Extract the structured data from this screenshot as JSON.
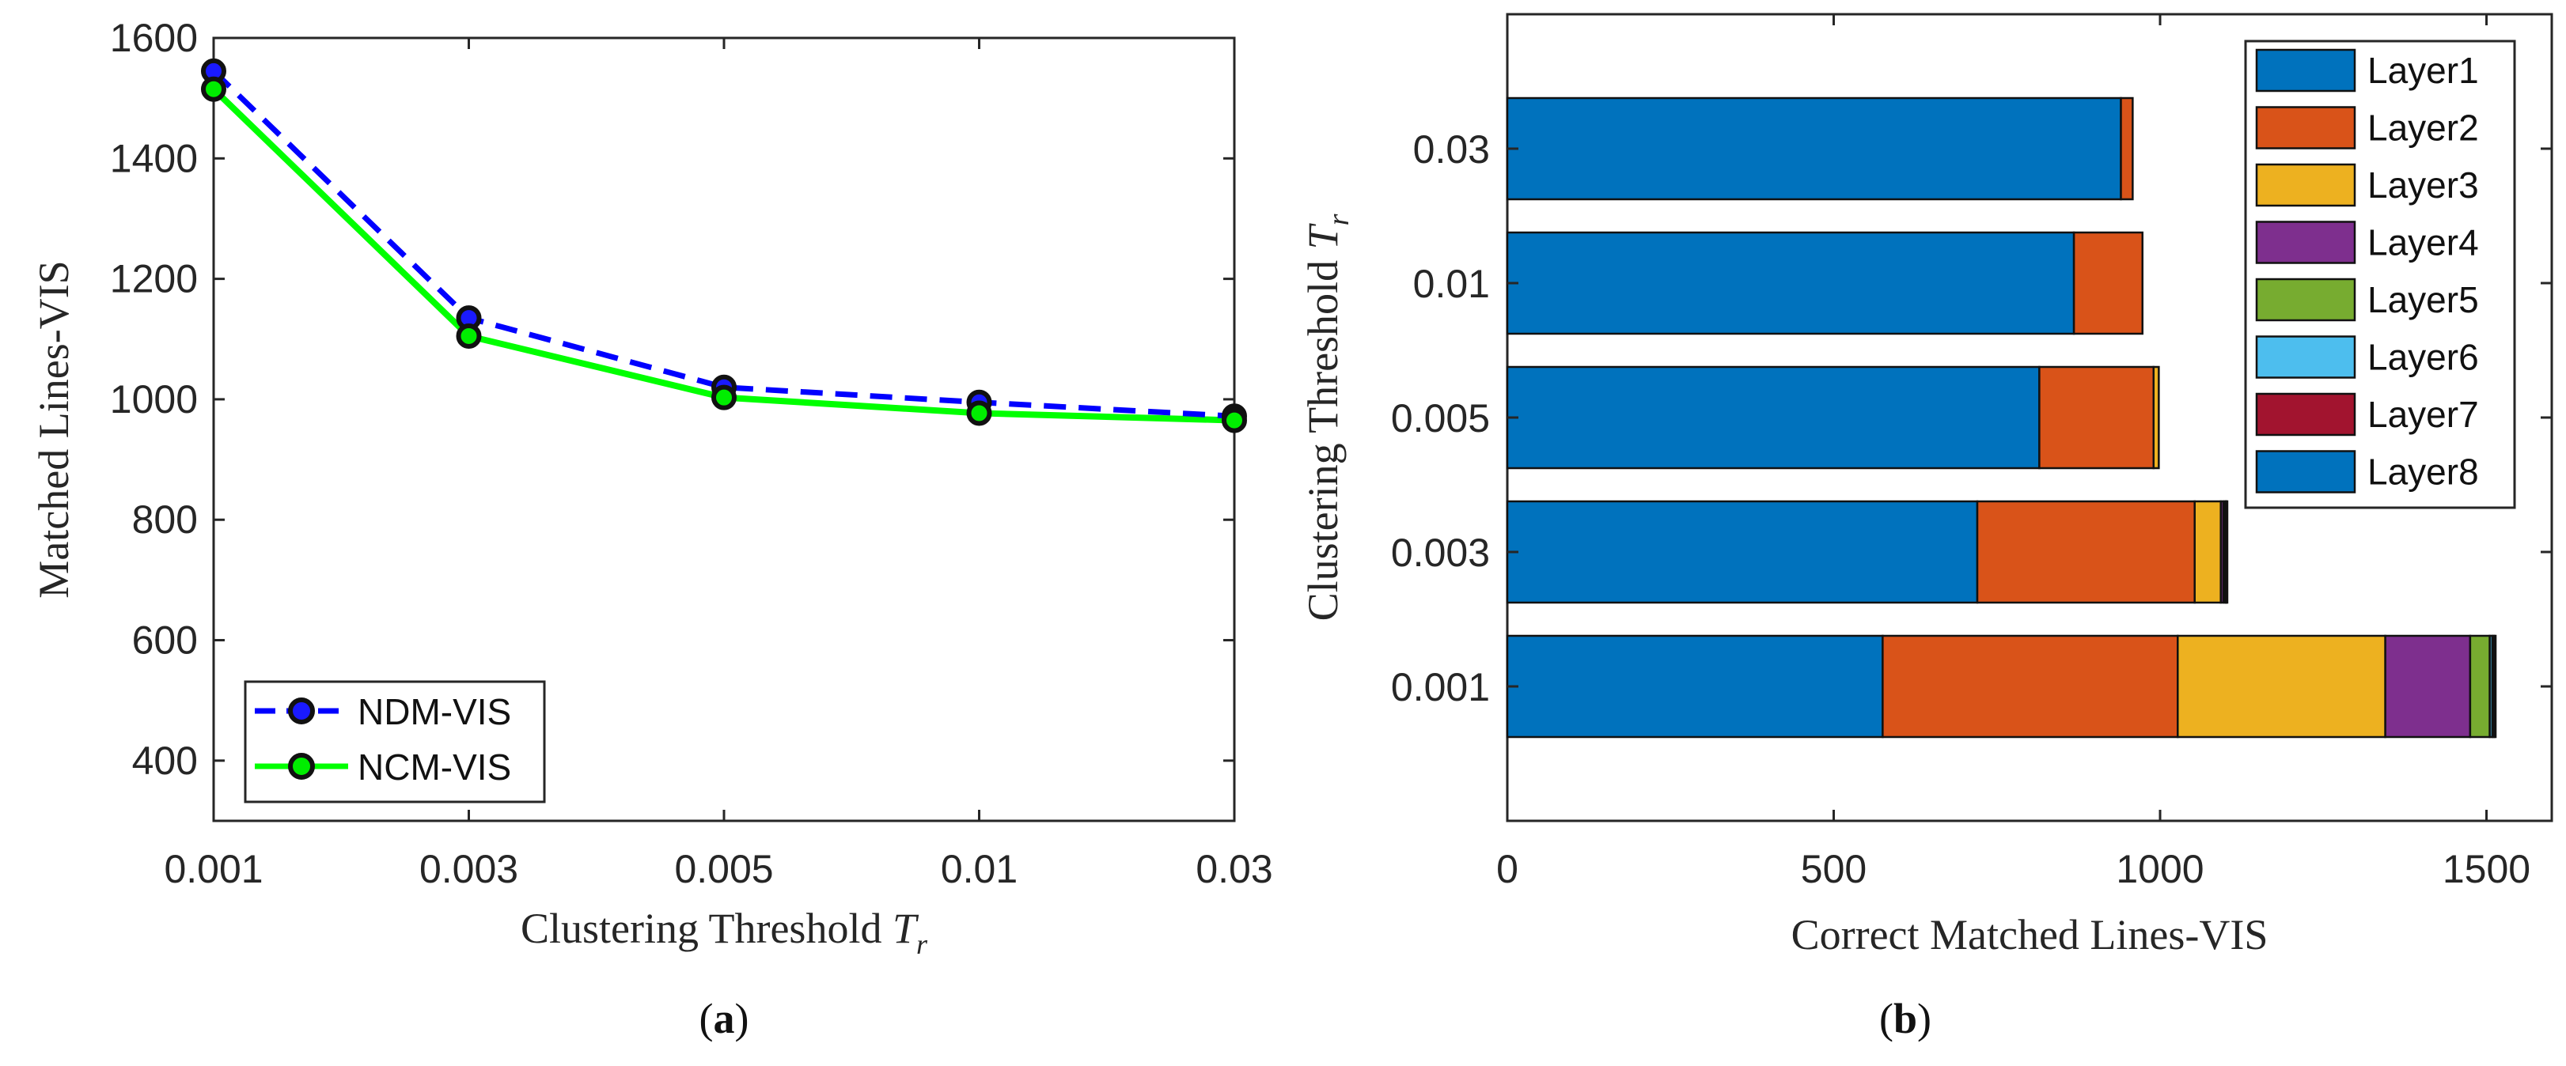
{
  "chart_data": [
    {
      "type": "line",
      "panel": "a",
      "caption": "a",
      "x_categories": [
        "0.001",
        "0.003",
        "0.005",
        "0.01",
        "0.03"
      ],
      "xlabel": "Clustering Threshold",
      "xlabel_symbol": "T",
      "xlabel_subscript": "r",
      "ylabel": "Matched Lines-VIS",
      "ylim": [
        300,
        1600
      ],
      "yticks": [
        "400",
        "600",
        "800",
        "1000",
        "1200",
        "1400",
        "1600"
      ],
      "ytick_values": [
        400,
        600,
        800,
        1000,
        1200,
        1400,
        1600
      ],
      "series": [
        {
          "name": "NDM-VIS",
          "values": [
            1545,
            1135,
            1020,
            995,
            972
          ],
          "color": "#0000ff",
          "marker_fill": "#1a1aff",
          "dash": true
        },
        {
          "name": "NCM-VIS",
          "values": [
            1515,
            1105,
            1003,
            977,
            965
          ],
          "color": "#00ff00",
          "marker_fill": "#00ee00",
          "dash": false
        }
      ],
      "legend_position": "bottom-left"
    },
    {
      "type": "bar",
      "orientation": "horizontal",
      "stacked": true,
      "panel": "b",
      "caption": "b",
      "categories": [
        "0.001",
        "0.003",
        "0.005",
        "0.01",
        "0.03"
      ],
      "xlabel": "Correct Matched Lines-VIS",
      "ylabel": "Clustering Threshold",
      "ylabel_symbol": "T",
      "ylabel_subscript": "r",
      "xlim": [
        0,
        1600
      ],
      "xticks": [
        "0",
        "500",
        "1000",
        "1500"
      ],
      "xtick_values": [
        0,
        500,
        1000,
        1500
      ],
      "series": [
        {
          "name": "Layer1",
          "color": "#0072bd",
          "values": [
            575,
            720,
            815,
            868,
            940
          ]
        },
        {
          "name": "Layer2",
          "color": "#d95319",
          "values": [
            452,
            333,
            175,
            105,
            18
          ]
        },
        {
          "name": "Layer3",
          "color": "#edb120",
          "values": [
            318,
            40,
            8,
            0,
            0
          ]
        },
        {
          "name": "Layer4",
          "color": "#7e2f8e",
          "values": [
            130,
            4,
            0,
            0,
            0
          ]
        },
        {
          "name": "Layer5",
          "color": "#77ac30",
          "values": [
            30,
            3,
            0,
            0,
            0
          ]
        },
        {
          "name": "Layer6",
          "color": "#4dbeee",
          "values": [
            4,
            1,
            0,
            0,
            0
          ]
        },
        {
          "name": "Layer7",
          "color": "#a2142f",
          "values": [
            3,
            1,
            0,
            0,
            0
          ]
        },
        {
          "name": "Layer8",
          "color": "#0072bd",
          "values": [
            2,
            1,
            0,
            0,
            0
          ]
        }
      ],
      "legend_position": "top-right"
    }
  ]
}
